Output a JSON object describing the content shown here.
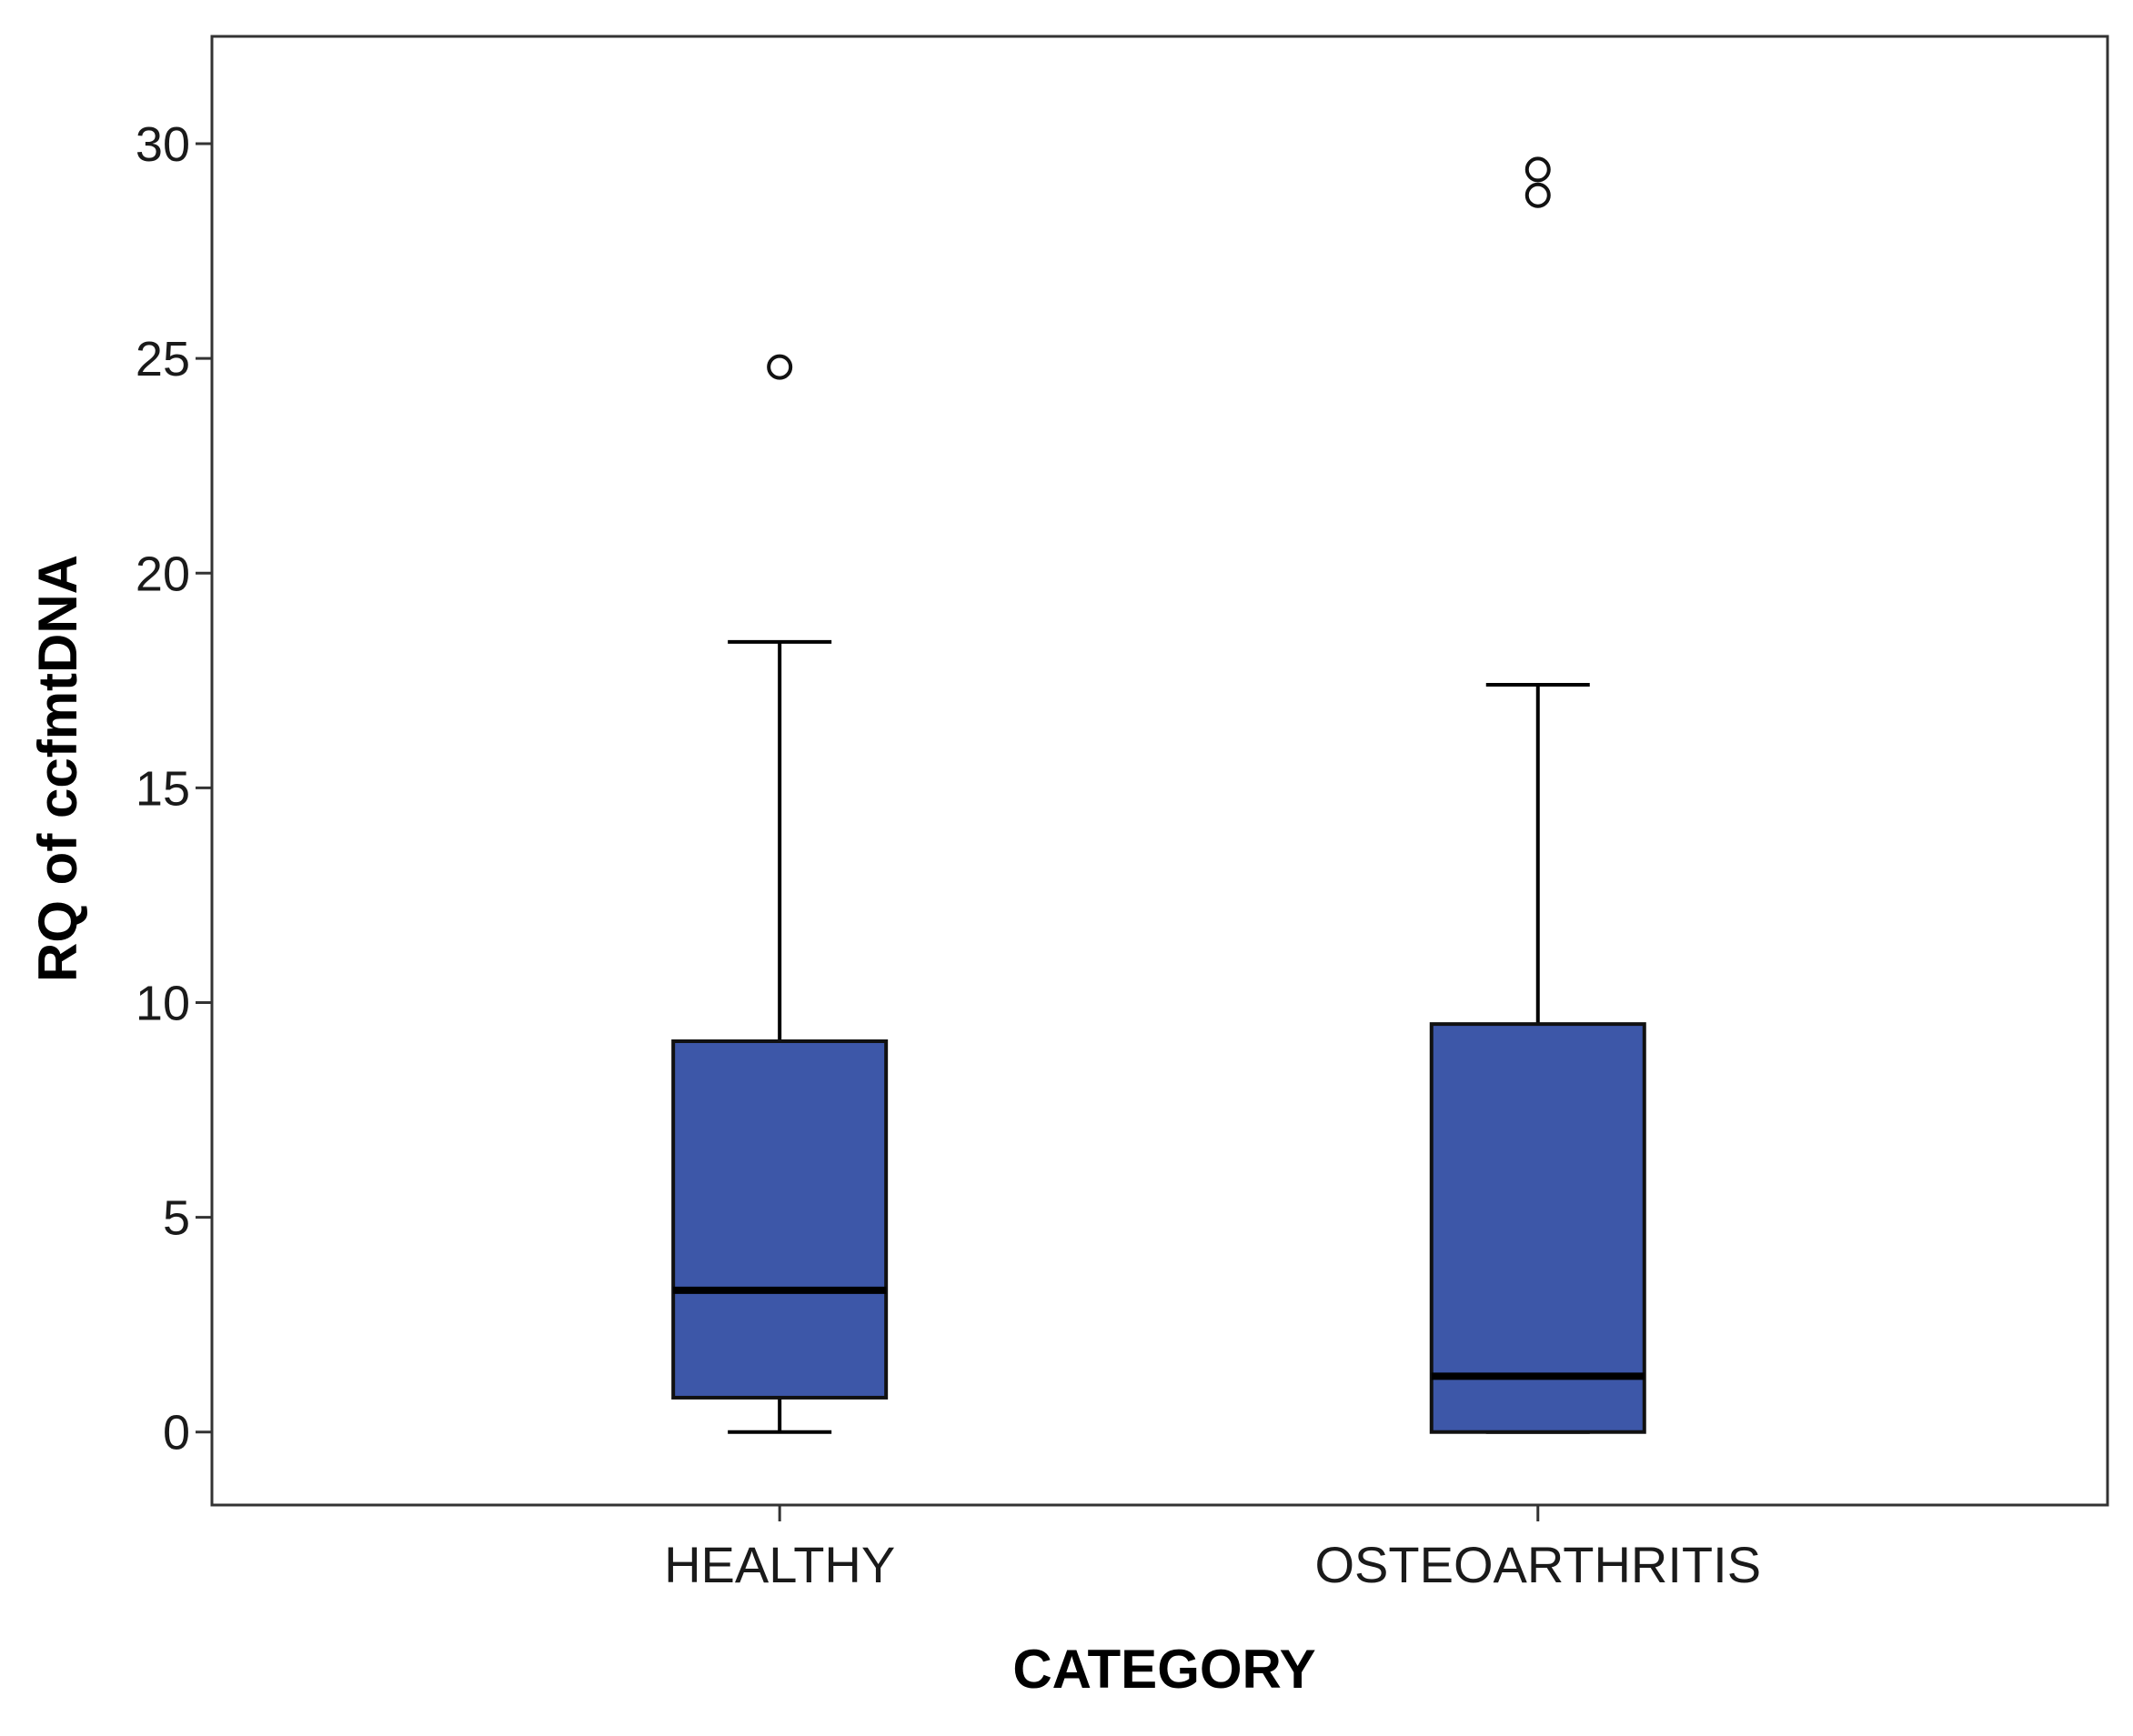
{
  "chart_data": {
    "type": "boxplot",
    "title": "",
    "xlabel": "CATEGORY",
    "ylabel": "RQ of ccfmtDNA",
    "ylim": [
      -1.7,
      32.5
    ],
    "yticks": [
      0,
      5,
      10,
      15,
      20,
      25,
      30
    ],
    "grid": false,
    "colors": {
      "box_fill": "#3d57a8",
      "stroke": "#000000",
      "frame": "#333333"
    },
    "categories": [
      "HEALTHY",
      "OSTEOARTHRITIS"
    ],
    "boxes": [
      {
        "category": "HEALTHY",
        "whisker_low": 0.0,
        "q1": 0.8,
        "median": 3.3,
        "q3": 9.1,
        "whisker_high": 18.4,
        "outliers": [
          24.8
        ]
      },
      {
        "category": "OSTEOARTHRITIS",
        "whisker_low": 0.0,
        "q1": 0.0,
        "median": 1.3,
        "q3": 9.5,
        "whisker_high": 17.4,
        "outliers": [
          29.4,
          28.8
        ]
      }
    ]
  }
}
